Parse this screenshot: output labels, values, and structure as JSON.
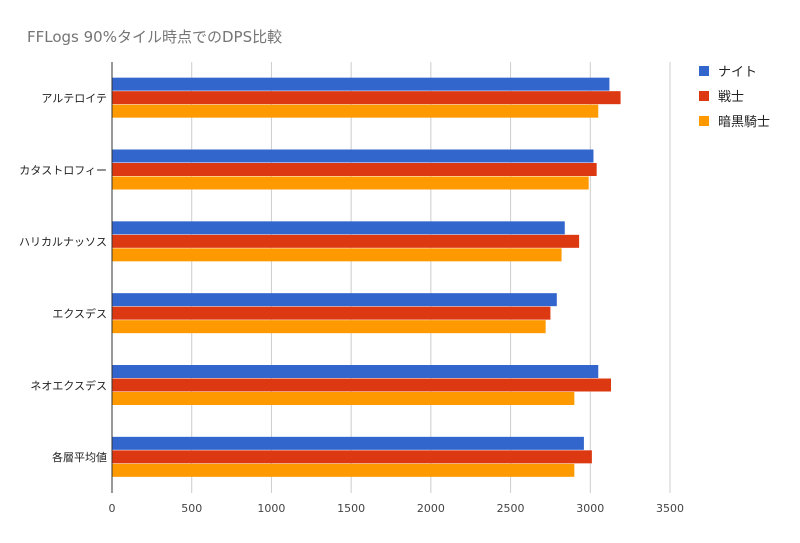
{
  "chart_data": {
    "type": "bar",
    "orientation": "horizontal",
    "title": "FFLogs 90%タイル時点でのDPS比較",
    "categories": [
      "アルテロイテ",
      "カタストロフィー",
      "ハリカルナッソス",
      "エクスデス",
      "ネオエクスデス",
      "各層平均値"
    ],
    "series": [
      {
        "name": "ナイト",
        "color": "#3366cc",
        "values": [
          3120,
          3020,
          2840,
          2790,
          3050,
          2960
        ]
      },
      {
        "name": "戦士",
        "color": "#dc3912",
        "values": [
          3190,
          3040,
          2930,
          2750,
          3130,
          3010
        ]
      },
      {
        "name": "暗黒騎士",
        "color": "#ff9900",
        "values": [
          3050,
          2990,
          2820,
          2720,
          2900,
          2900
        ]
      }
    ],
    "x_ticks": [
      "0",
      "500",
      "1000",
      "1500",
      "2000",
      "2500",
      "3000",
      "3500"
    ],
    "xlim": [
      0,
      3500
    ],
    "xlabel": "",
    "ylabel": "",
    "grid": true,
    "legend_position": "right"
  }
}
